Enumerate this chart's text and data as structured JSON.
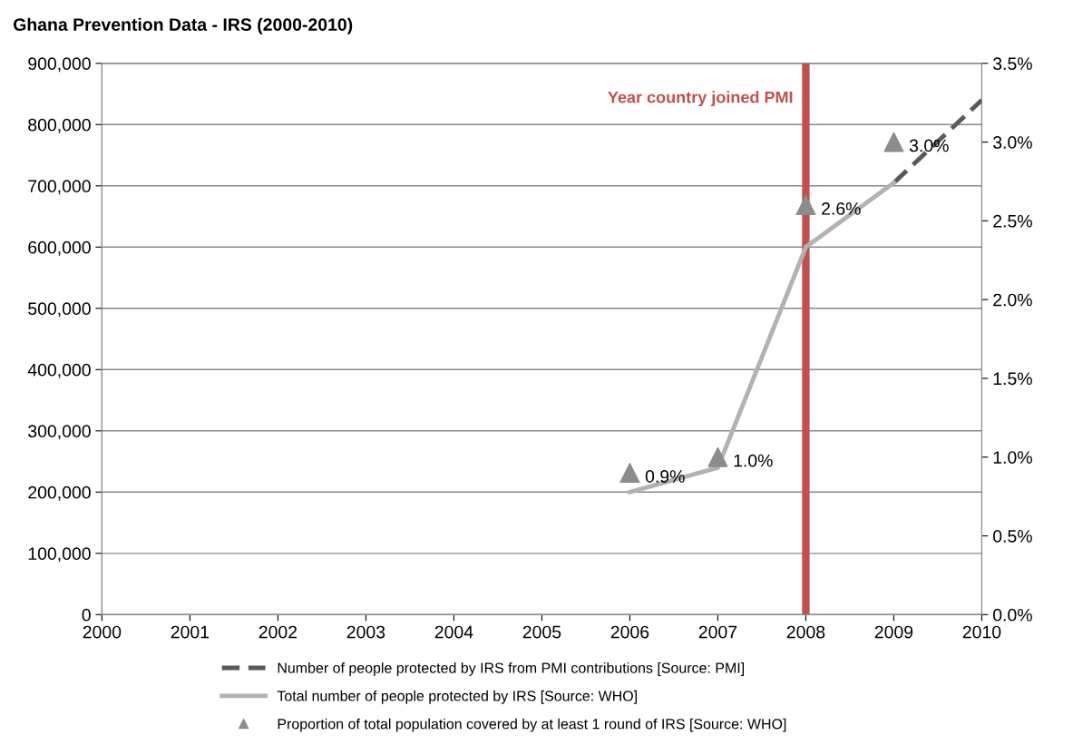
{
  "chart_data": {
    "type": "line",
    "title": "Ghana Prevention Data - IRS (2000-2010)",
    "xlim": [
      2000,
      2010
    ],
    "xticks": [
      2000,
      2001,
      2002,
      2003,
      2004,
      2005,
      2006,
      2007,
      2008,
      2009,
      2010
    ],
    "ylim": [
      0,
      900000
    ],
    "yticks": [
      {
        "value": 0,
        "label": "0"
      },
      {
        "value": 100000,
        "label": "100,000"
      },
      {
        "value": 200000,
        "label": "200,000"
      },
      {
        "value": 300000,
        "label": "300,000"
      },
      {
        "value": 400000,
        "label": "400,000"
      },
      {
        "value": 500000,
        "label": "500,000"
      },
      {
        "value": 600000,
        "label": "600,000"
      },
      {
        "value": 700000,
        "label": "700,000"
      },
      {
        "value": 800000,
        "label": "800,000"
      },
      {
        "value": 900000,
        "label": "900,000"
      }
    ],
    "y2lim": [
      0,
      3.5
    ],
    "y2ticks": [
      {
        "value": 0,
        "label": "0.0%"
      },
      {
        "value": 0.5,
        "label": "0.5%"
      },
      {
        "value": 1.0,
        "label": "1.0%"
      },
      {
        "value": 1.5,
        "label": "1.5%"
      },
      {
        "value": 2.0,
        "label": "2.0%"
      },
      {
        "value": 2.5,
        "label": "2.5%"
      },
      {
        "value": 3.0,
        "label": "3.0%"
      },
      {
        "value": 3.5,
        "label": "3.5%"
      }
    ],
    "grid": "y",
    "legend": "bottom",
    "series": [
      {
        "name": "Number of people protected by IRS from PMI contributions [Source: PMI]",
        "line_style": "dashed",
        "color": "#595959",
        "x": [
          2009,
          2010
        ],
        "values": [
          705000,
          840000
        ]
      },
      {
        "name": "Total number of people protected by IRS [Source: WHO]",
        "line_style": "solid",
        "color": "#b2b2b2",
        "x": [
          2006,
          2007,
          2008,
          2009
        ],
        "values": [
          200000,
          240000,
          600000,
          705000
        ]
      },
      {
        "name": "Proportion of total population covered by at least 1 round of IRS [Source: WHO]",
        "type": "scatter",
        "marker": "triangle",
        "axis": "y2",
        "color": "#8c8c8c",
        "x": [
          2006,
          2007,
          2008,
          2009
        ],
        "values": [
          0.9,
          1.0,
          2.6,
          3.0
        ],
        "value_labels": [
          "0.9%",
          "1.0%",
          "2.6%",
          "3.0%"
        ]
      }
    ],
    "ref_lines": [
      {
        "axis": "x",
        "value": 2008,
        "label": "Year country joined PMI",
        "color": "#c0504d"
      }
    ]
  }
}
